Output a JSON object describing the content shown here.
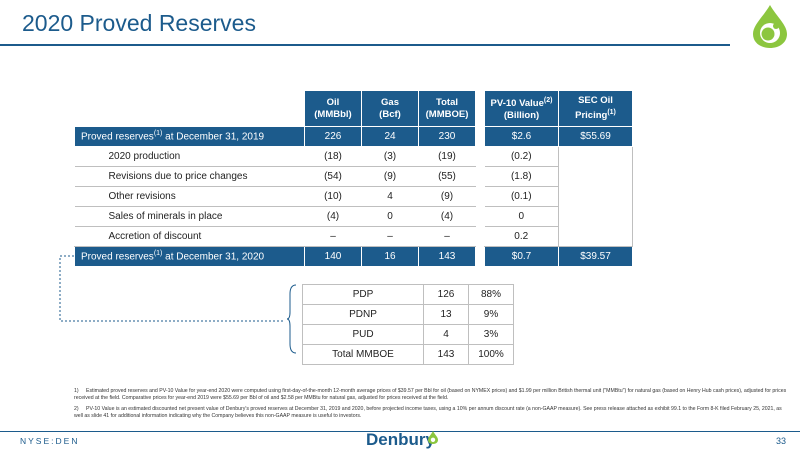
{
  "title": "2020 Proved Reserves",
  "main_table": {
    "headers": {
      "oil": "Oil",
      "oil_unit": "(MMBbl)",
      "gas": "Gas",
      "gas_unit": "(Bcf)",
      "total": "Total",
      "total_unit": "(MMBOE)",
      "pv10": "PV-10 Value",
      "pv10_sup": "(2)",
      "pv10_unit": "(Billion)",
      "sec": "SEC Oil",
      "sec_line2": "Pricing",
      "sec_sup": "(1)"
    },
    "rows": [
      {
        "label_a": "Proved reserves",
        "sup": "(1)",
        "label_b": " at December 31, 2019",
        "oil": "226",
        "gas": "24",
        "total": "230",
        "pv10": "$2.6",
        "sec": "$55.69"
      },
      {
        "label": "2020 production",
        "oil": "(18)",
        "gas": "(3)",
        "total": "(19)",
        "pv10": "(0.2)"
      },
      {
        "label": "Revisions due to price changes",
        "oil": "(54)",
        "gas": "(9)",
        "total": "(55)",
        "pv10": "(1.8)"
      },
      {
        "label": "Other revisions",
        "oil": "(10)",
        "gas": "4",
        "total": "(9)",
        "pv10": "(0.1)"
      },
      {
        "label": "Sales of minerals in place",
        "oil": "(4)",
        "gas": "0",
        "total": "(4)",
        "pv10": "0"
      },
      {
        "label": "Accretion of discount",
        "oil": "–",
        "gas": "–",
        "total": "–",
        "pv10": "0.2"
      },
      {
        "label_a": "Proved reserves",
        "sup": "(1)",
        "label_b": " at December 31, 2020",
        "oil": "140",
        "gas": "16",
        "total": "143",
        "pv10": "$0.7",
        "sec": "$39.57"
      }
    ]
  },
  "breakdown_table": {
    "rows": [
      {
        "label": "PDP",
        "value": "126",
        "pct": "88%"
      },
      {
        "label": "PDNP",
        "value": "13",
        "pct": "9%"
      },
      {
        "label": "PUD",
        "value": "4",
        "pct": "3%"
      },
      {
        "label": "Total MMBOE",
        "value": "143",
        "pct": "100%"
      }
    ]
  },
  "footnotes": [
    {
      "num": "1)",
      "text": "Estimated proved reserves and PV-10 Value for year-end 2020 were computed using first-day-of-the-month 12-month average prices of $39.57 per Bbl for oil (based on NYMEX prices) and $1.99 per million British thermal unit (\"MMBtu\") for natural gas (based on Henry Hub cash prices), adjusted for prices received at the field. Comparative prices for year-end 2019 were $55.69 per Bbl of oil and $2.58 per MMBtu for natural gas, adjusted for prices received at the field."
    },
    {
      "num": "2)",
      "text": "PV-10 Value is an estimated discounted net present value of Denbury's proved reserves at December 31, 2019 and 2020, before projected income taxes, using a 10% per annum discount rate (a non-GAAP measure). See press release attached as exhibit 99.1 to the Form 8-K filed February 25, 2021, as well as slide 41 for additional information indicating why the Company believes this non-GAAP measure is useful to investors."
    }
  ],
  "footer": {
    "ticker": "NYSE:DEN",
    "brand": "Denbury",
    "page": "33"
  },
  "colors": {
    "brand_blue": "#1c5b8c",
    "brand_green": "#8cc63f"
  }
}
